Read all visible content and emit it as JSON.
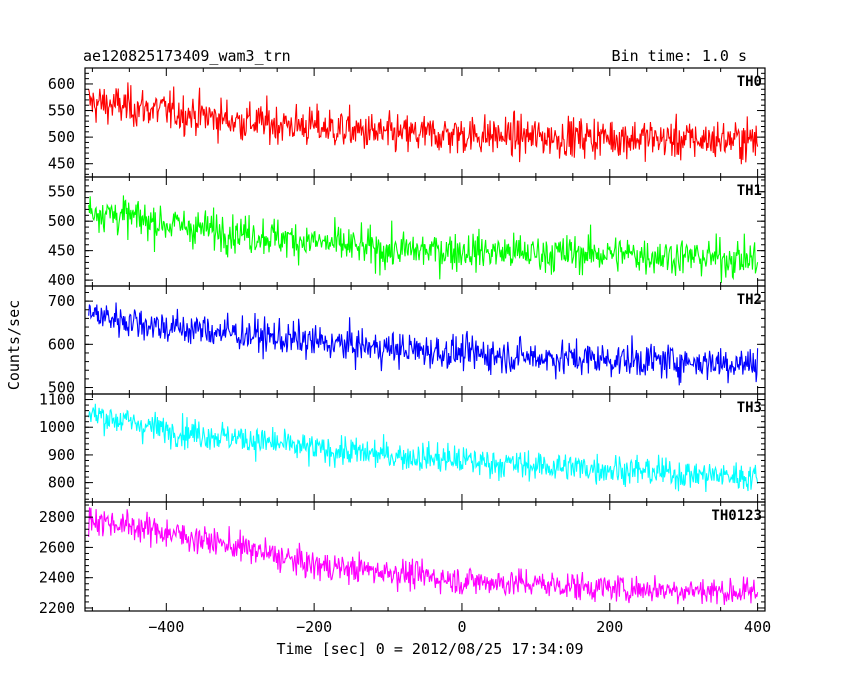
{
  "header": {
    "title": "ae120825173409_wam3_trn",
    "bin_time": "Bin time: 1.0 s"
  },
  "chart_data": {
    "type": "line",
    "title": "ae120825173409_wam3_trn",
    "subtitle": "Bin time: 1.0 s",
    "xlabel": "Time [sec] 0 = 2012/08/25 17:34:09",
    "ylabel": "Counts/sec",
    "xlim": [
      -510,
      410
    ],
    "x_ticks": [
      -400,
      -200,
      0,
      200,
      400
    ],
    "x_tick_labels": [
      "−400",
      "−200",
      "0",
      "200",
      "400"
    ],
    "x_range": [
      -505,
      400
    ],
    "panels": [
      {
        "name": "TH0",
        "color": "#ff0000",
        "ylim": [
          425,
          630
        ],
        "yticks": [
          450,
          500,
          550,
          600
        ],
        "trend": [
          [
            -505,
            565
          ],
          [
            -400,
            550
          ],
          [
            -300,
            530
          ],
          [
            -200,
            520
          ],
          [
            -100,
            505
          ],
          [
            0,
            505
          ],
          [
            100,
            500
          ],
          [
            200,
            500
          ],
          [
            300,
            495
          ],
          [
            400,
            495
          ]
        ],
        "noise": 28
      },
      {
        "name": "TH1",
        "color": "#00ff00",
        "ylim": [
          390,
          575
        ],
        "yticks": [
          400,
          450,
          500,
          550
        ],
        "trend": [
          [
            -505,
            520
          ],
          [
            -400,
            495
          ],
          [
            -300,
            480
          ],
          [
            -200,
            465
          ],
          [
            -100,
            450
          ],
          [
            0,
            450
          ],
          [
            100,
            445
          ],
          [
            200,
            445
          ],
          [
            300,
            440
          ],
          [
            400,
            435
          ]
        ],
        "noise": 24
      },
      {
        "name": "TH2",
        "color": "#0000ff",
        "ylim": [
          485,
          735
        ],
        "yticks": [
          500,
          600,
          700
        ],
        "trend": [
          [
            -505,
            670
          ],
          [
            -400,
            640
          ],
          [
            -300,
            625
          ],
          [
            -200,
            605
          ],
          [
            -100,
            590
          ],
          [
            0,
            580
          ],
          [
            100,
            570
          ],
          [
            200,
            565
          ],
          [
            300,
            560
          ],
          [
            400,
            555
          ]
        ],
        "noise": 30
      },
      {
        "name": "TH3",
        "color": "#00ffff",
        "ylim": [
          730,
          1120
        ],
        "yticks": [
          800,
          900,
          1000,
          1100
        ],
        "trend": [
          [
            -505,
            1050
          ],
          [
            -400,
            990
          ],
          [
            -300,
            960
          ],
          [
            -200,
            920
          ],
          [
            -100,
            900
          ],
          [
            0,
            880
          ],
          [
            100,
            860
          ],
          [
            200,
            850
          ],
          [
            300,
            830
          ],
          [
            400,
            820
          ]
        ],
        "noise": 40
      },
      {
        "name": "TH0123",
        "color": "#ff00ff",
        "ylim": [
          2180,
          2900
        ],
        "yticks": [
          2200,
          2400,
          2600,
          2800
        ],
        "trend": [
          [
            -505,
            2790
          ],
          [
            -400,
            2700
          ],
          [
            -300,
            2600
          ],
          [
            -200,
            2480
          ],
          [
            -100,
            2440
          ],
          [
            0,
            2380
          ],
          [
            100,
            2360
          ],
          [
            200,
            2330
          ],
          [
            300,
            2320
          ],
          [
            400,
            2300
          ]
        ],
        "noise": 70
      }
    ]
  }
}
